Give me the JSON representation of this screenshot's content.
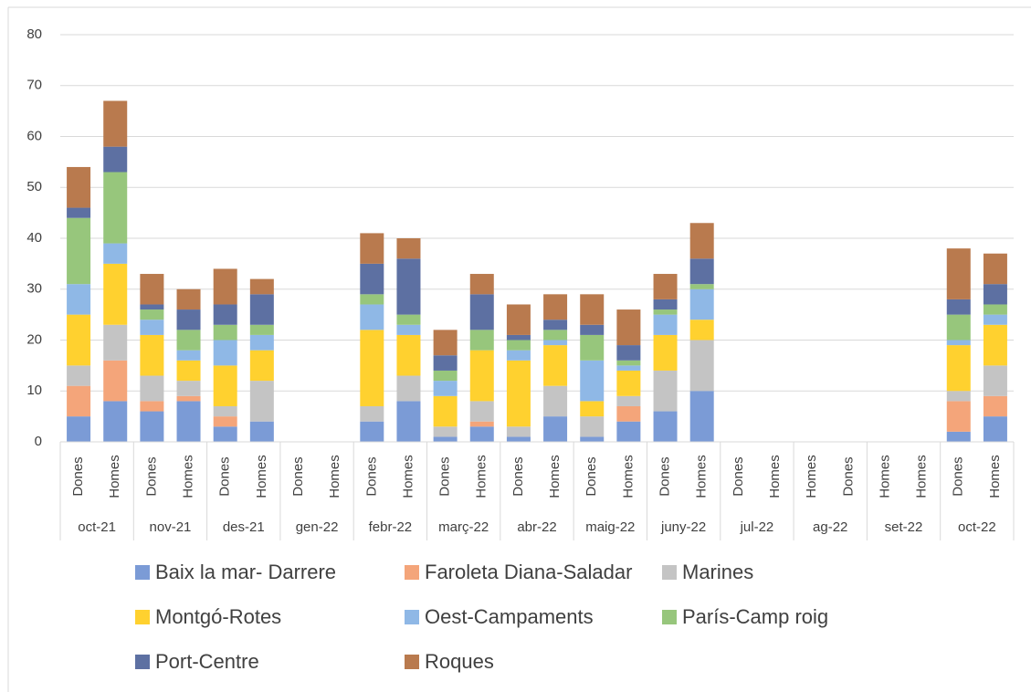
{
  "chart_data": {
    "type": "stacked_bar",
    "groups": [
      "oct-21",
      "nov-21",
      "des-21",
      "gen-22",
      "febr-22",
      "març-22",
      "abr-22",
      "maig-22",
      "juny-22",
      "jul-22",
      "ag-22",
      "set-22",
      "oct-22"
    ],
    "categories": [
      "Dones",
      "Homes",
      "Dones",
      "Homes",
      "Dones",
      "Homes",
      "Dones",
      "Homes",
      "Dones",
      "Homes",
      "Dones",
      "Homes",
      "Dones",
      "Homes",
      "Dones",
      "Homes",
      "Dones",
      "Homes",
      "Dones",
      "Homes",
      "Homes",
      "Dones",
      "Homes",
      "Homes",
      "Dones",
      "Homes"
    ],
    "series": [
      {
        "name": "Baix la mar- Darrere",
        "color": "#7b9bd6",
        "values": [
          5,
          8,
          6,
          8,
          3,
          4,
          0,
          0,
          4,
          8,
          1,
          3,
          1,
          5,
          1,
          4,
          6,
          10,
          0,
          0,
          0,
          0,
          0,
          0,
          2,
          5
        ]
      },
      {
        "name": "Faroleta Diana-Saladar",
        "color": "#f4a57a",
        "values": [
          6,
          8,
          2,
          1,
          2,
          0,
          0,
          0,
          0,
          0,
          0,
          1,
          0,
          0,
          0,
          3,
          0,
          0,
          0,
          0,
          0,
          0,
          0,
          0,
          6,
          4
        ]
      },
      {
        "name": "Marines",
        "color": "#c4c4c4",
        "values": [
          4,
          7,
          5,
          3,
          2,
          8,
          0,
          0,
          3,
          5,
          2,
          4,
          2,
          6,
          4,
          2,
          8,
          10,
          0,
          0,
          0,
          0,
          0,
          0,
          2,
          6
        ]
      },
      {
        "name": "Montgó-Rotes",
        "color": "#ffd12f",
        "values": [
          10,
          12,
          8,
          4,
          8,
          6,
          0,
          0,
          15,
          8,
          6,
          10,
          13,
          8,
          3,
          5,
          7,
          4,
          0,
          0,
          0,
          0,
          0,
          0,
          9,
          8
        ]
      },
      {
        "name": "Oest-Campaments",
        "color": "#8fb8e6",
        "values": [
          6,
          4,
          3,
          2,
          5,
          3,
          0,
          0,
          5,
          2,
          3,
          0,
          2,
          1,
          8,
          1,
          4,
          6,
          0,
          0,
          0,
          0,
          0,
          0,
          1,
          2
        ]
      },
      {
        "name": "París-Camp roig",
        "color": "#97c67c",
        "values": [
          13,
          14,
          2,
          4,
          3,
          2,
          0,
          0,
          2,
          2,
          2,
          4,
          2,
          2,
          5,
          1,
          1,
          1,
          0,
          0,
          0,
          0,
          0,
          0,
          5,
          2
        ]
      },
      {
        "name": "Port-Centre",
        "color": "#5d70a2",
        "values": [
          2,
          5,
          1,
          4,
          4,
          6,
          0,
          0,
          6,
          11,
          3,
          7,
          1,
          2,
          2,
          3,
          2,
          5,
          0,
          0,
          0,
          0,
          0,
          0,
          3,
          4
        ]
      },
      {
        "name": "Roques",
        "color": "#b97a4e",
        "values": [
          8,
          9,
          6,
          4,
          7,
          3,
          0,
          0,
          6,
          4,
          5,
          4,
          6,
          5,
          6,
          7,
          5,
          7,
          0,
          0,
          0,
          0,
          0,
          0,
          10,
          6
        ]
      }
    ],
    "ylim": [
      0,
      80
    ],
    "yticks": [
      0,
      10,
      20,
      30,
      40,
      50,
      60,
      70,
      80
    ],
    "grid": true
  }
}
